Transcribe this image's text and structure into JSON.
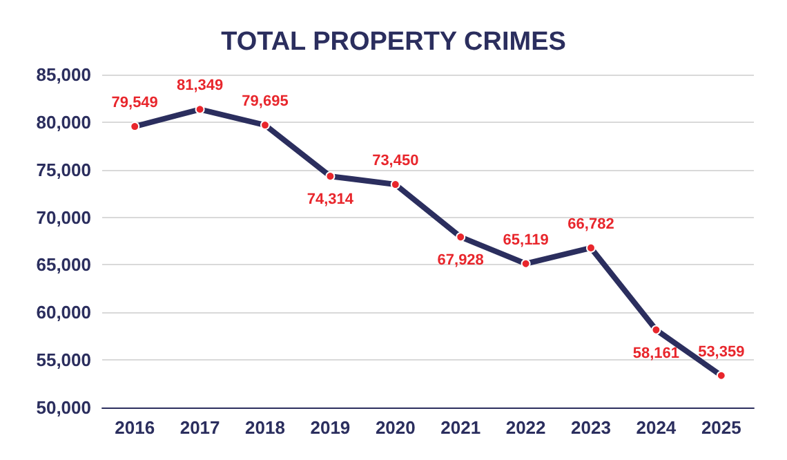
{
  "chart_data": {
    "type": "line",
    "title": "TOTAL PROPERTY CRIMES",
    "categories": [
      "2016",
      "2017",
      "2018",
      "2019",
      "2020",
      "2021",
      "2022",
      "2023",
      "2024",
      "2025"
    ],
    "series": [
      {
        "color": "#2b2e5e",
        "values": [
          79549,
          81349,
          79695,
          74314,
          73450,
          67928,
          65119,
          66782,
          58161,
          53359
        ],
        "value_labels": [
          "79,549",
          "81,349",
          "79,695",
          "74,314",
          "73,450",
          "67,928",
          "65,119",
          "66,782",
          "58,161",
          "53,359"
        ]
      }
    ],
    "ylim": [
      50000,
      85000
    ],
    "yticks": [
      {
        "value": 50000,
        "label": "50,000"
      },
      {
        "value": 55000,
        "label": "55,000"
      },
      {
        "value": 60000,
        "label": "60,000"
      },
      {
        "value": 65000,
        "label": "65,000"
      },
      {
        "value": 70000,
        "label": "70,000"
      },
      {
        "value": 75000,
        "label": "75,000"
      },
      {
        "value": 80000,
        "label": "80,000"
      },
      {
        "value": 85000,
        "label": "85,000"
      }
    ],
    "grid": "y",
    "marker": "circle",
    "line_style": "solid"
  }
}
